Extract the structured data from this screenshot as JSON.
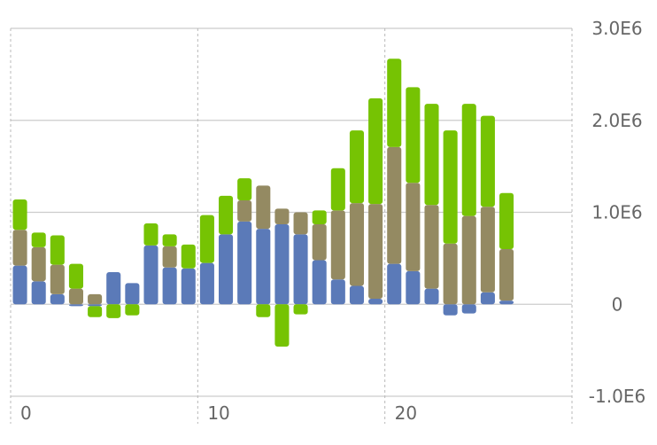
{
  "chart_data": {
    "type": "bar",
    "stacked": true,
    "x": [
      0,
      1,
      2,
      3,
      4,
      5,
      6,
      7,
      8,
      9,
      10,
      11,
      12,
      13,
      14,
      15,
      16,
      17,
      18,
      19,
      20,
      21,
      22,
      23,
      24,
      25,
      26
    ],
    "series": [
      {
        "color": "#5b7ab8",
        "values": [
          420000,
          250000,
          110000,
          -20000,
          -20000,
          350000,
          230000,
          640000,
          400000,
          390000,
          450000,
          760000,
          900000,
          820000,
          870000,
          760000,
          480000,
          270000,
          200000,
          60000,
          440000,
          360000,
          170000,
          -120000,
          -100000,
          130000,
          40000
        ]
      },
      {
        "color": "#948a62",
        "values": [
          390000,
          370000,
          320000,
          170000,
          110000,
          0,
          0,
          0,
          230000,
          0,
          0,
          0,
          230000,
          470000,
          170000,
          240000,
          390000,
          750000,
          900000,
          1030000,
          1270000,
          960000,
          910000,
          660000,
          960000,
          930000,
          560000
        ]
      },
      {
        "color": "#76c303",
        "values": [
          330000,
          160000,
          320000,
          270000,
          -120000,
          -150000,
          -120000,
          240000,
          130000,
          260000,
          520000,
          420000,
          240000,
          -140000,
          -460000,
          -110000,
          150000,
          460000,
          790000,
          1150000,
          960000,
          1040000,
          1100000,
          1230000,
          1220000,
          990000,
          610000
        ]
      }
    ],
    "y_axis": {
      "position": "right",
      "min": -1000000,
      "max": 3000000,
      "ticks": [
        3000000,
        2000000,
        1000000,
        0,
        -1000000
      ],
      "tick_labels": [
        "3.0E6",
        "2.0E6",
        "1.0E6",
        "0",
        "-1.0E6"
      ]
    },
    "x_axis": {
      "min": -0.5,
      "max": 29.5,
      "ticks": [
        0,
        10,
        20
      ],
      "tick_labels": [
        "0",
        "10",
        "20"
      ],
      "gridlines_dashed": [
        -0.5,
        9.5,
        19.5,
        29.5
      ]
    },
    "grid": true,
    "legend": "none"
  }
}
